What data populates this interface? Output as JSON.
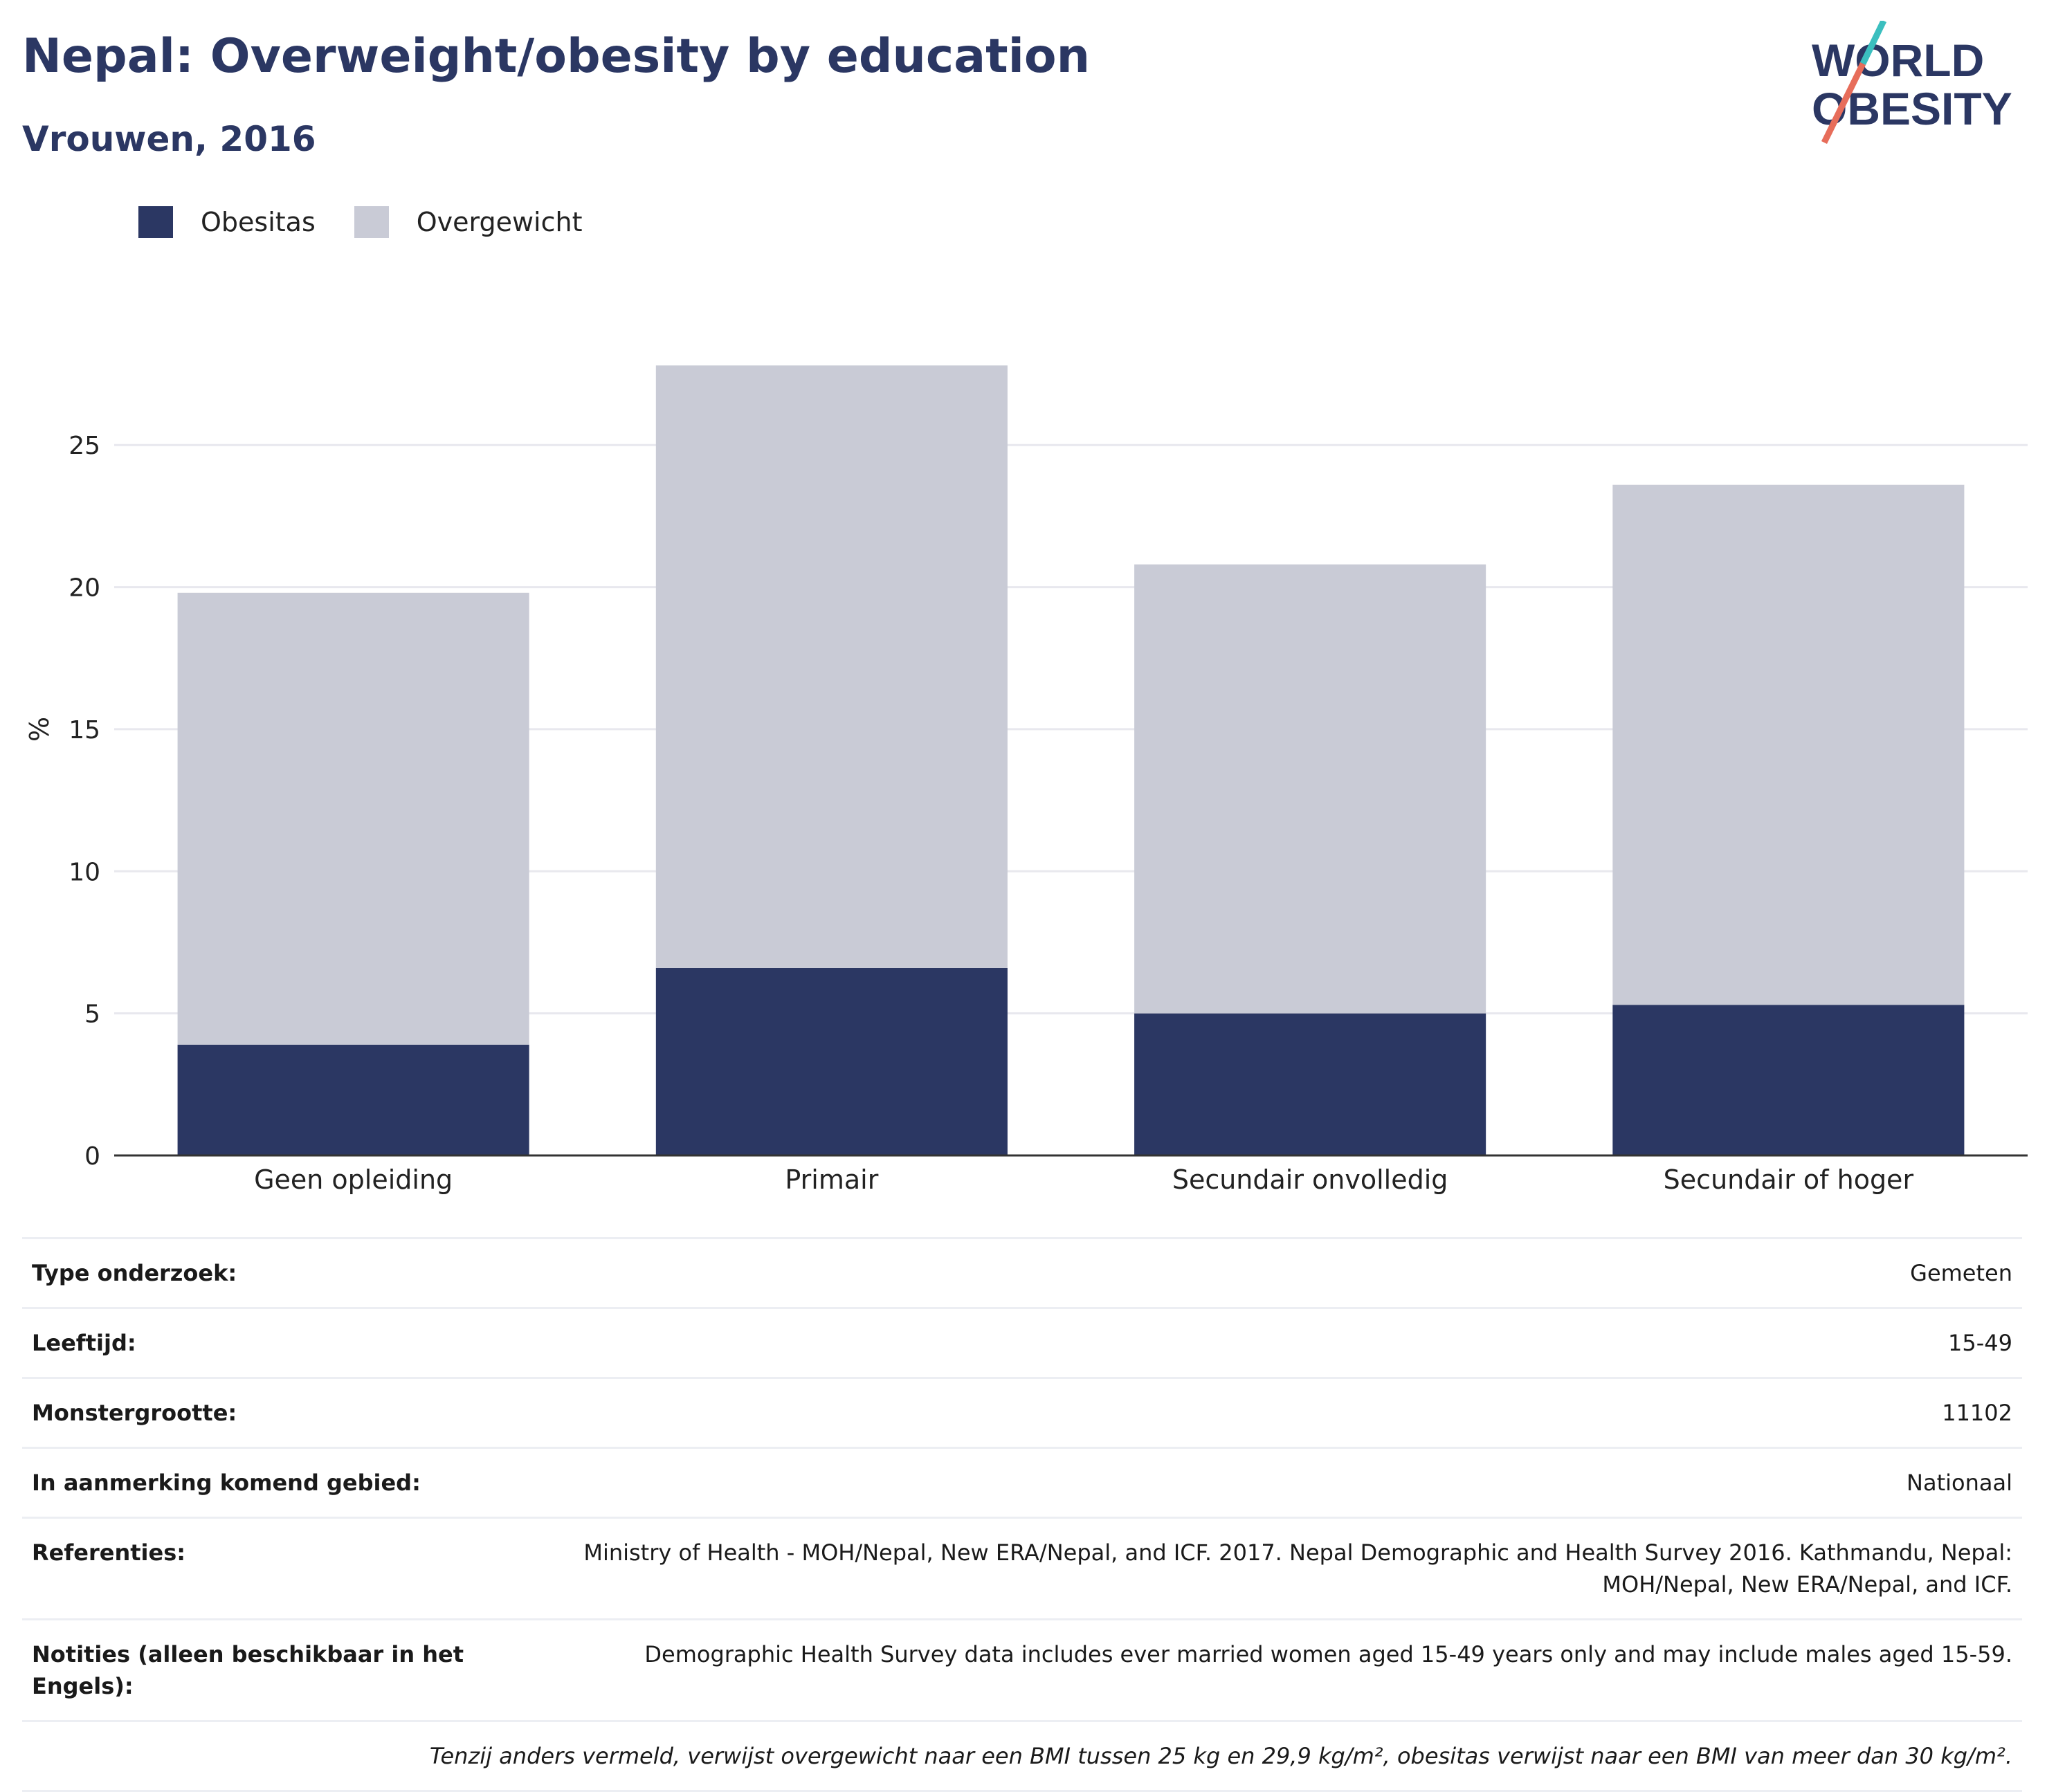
{
  "header": {
    "title": "Nepal: Overweight/obesity by education",
    "subtitle": "Vrouwen, 2016"
  },
  "logo": {
    "line1": "WORLD",
    "line2": "OBESITY"
  },
  "colors": {
    "obesitas": "#2b3763",
    "overgewicht": "#c9cbd6",
    "grid": "#e8e8ee",
    "axis": "#333333"
  },
  "legend": {
    "obesitas": "Obesitas",
    "overgewicht": "Overgewicht"
  },
  "chart_data": {
    "type": "bar",
    "stacked": true,
    "categories": [
      "Geen opleiding",
      "Primair",
      "Secundair onvolledig",
      "Secundair of hoger"
    ],
    "series": [
      {
        "name": "Obesitas",
        "values": [
          3.9,
          6.6,
          5.0,
          5.3
        ]
      },
      {
        "name": "Overgewicht",
        "values": [
          15.9,
          21.2,
          15.8,
          18.3
        ]
      }
    ],
    "ylabel": "%",
    "ylim": [
      0,
      28
    ],
    "yticks": [
      0,
      5,
      10,
      15,
      20,
      25
    ],
    "grid": true,
    "legend_position": "top-left"
  },
  "info": {
    "rows": [
      {
        "label": "Type onderzoek:",
        "value": "Gemeten"
      },
      {
        "label": "Leeftijd:",
        "value": "15-49"
      },
      {
        "label": "Monstergrootte:",
        "value": "11102"
      },
      {
        "label": "In aanmerking komend gebied:",
        "value": "Nationaal"
      },
      {
        "label": "Referenties:",
        "value": "Ministry of Health - MOH/Nepal, New ERA/Nepal, and ICF. 2017. Nepal Demographic and Health Survey 2016. Kathmandu, Nepal: MOH/Nepal, New ERA/Nepal, and ICF."
      },
      {
        "label": "Notities (alleen beschikbaar in het Engels):",
        "value": "Demographic Health Survey data includes ever married women aged 15-49 years only and may include males aged 15-59."
      }
    ],
    "footnote": "Tenzij anders vermeld, verwijst overgewicht naar een BMI tussen 25 kg en 29,9 kg/m², obesitas verwijst naar een BMI van meer dan 30 kg/m²."
  }
}
